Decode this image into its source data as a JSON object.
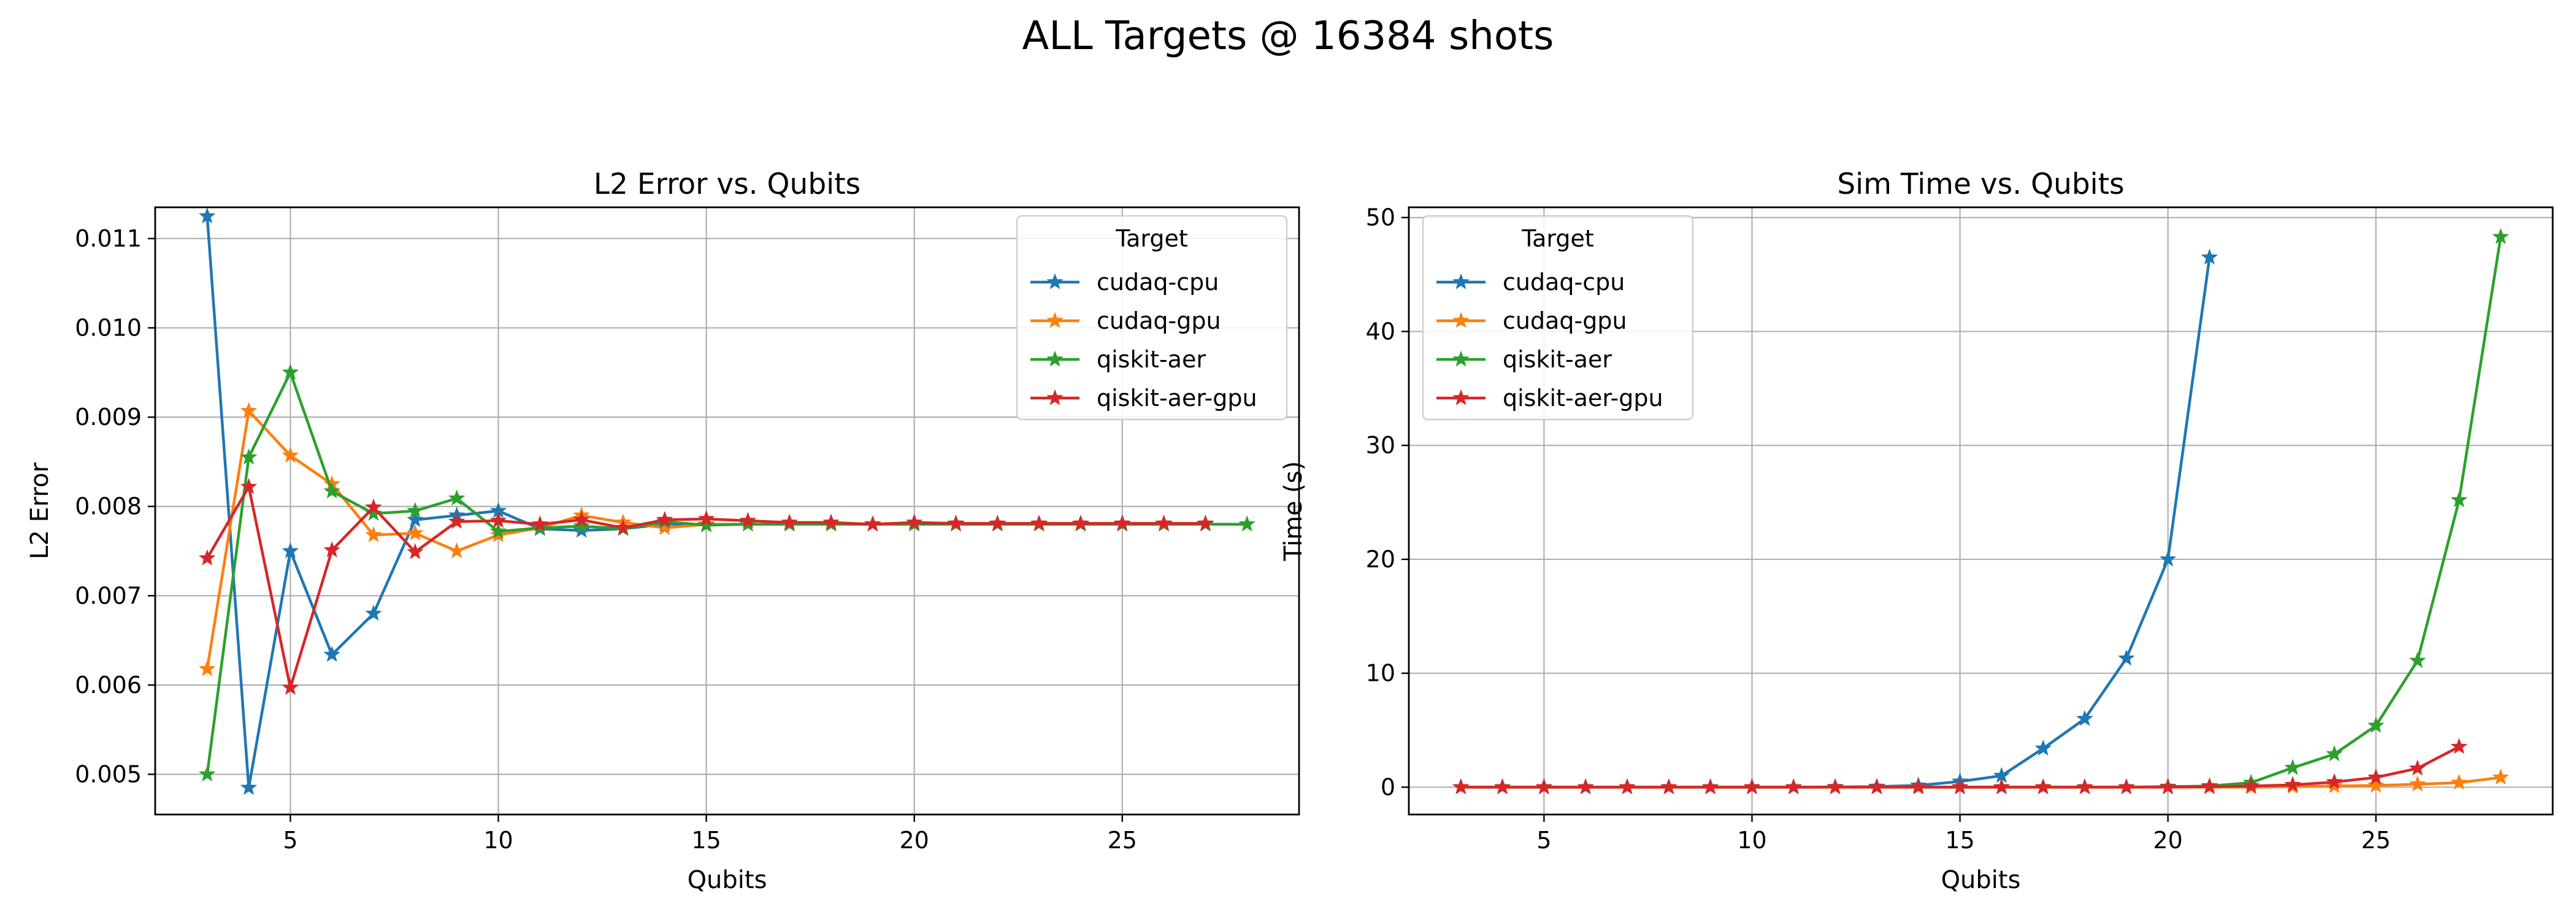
{
  "figure": {
    "title": "ALL Targets @ 16384 shots"
  },
  "chart_data": [
    {
      "type": "line",
      "title": "L2 Error vs. Qubits",
      "xlabel": "Qubits",
      "ylabel": "L2 Error",
      "xlim": [
        1.75,
        29.25
      ],
      "ylim": [
        0.00455,
        0.01135
      ],
      "xticks": [
        5,
        10,
        15,
        20,
        25
      ],
      "yticks": [
        0.005,
        0.006,
        0.007,
        0.008,
        0.009,
        0.01,
        0.011
      ],
      "ytick_labels": [
        "0.005",
        "0.006",
        "0.007",
        "0.008",
        "0.009",
        "0.010",
        "0.011"
      ],
      "grid": true,
      "legend": {
        "title": "Target",
        "placement": "upper right"
      },
      "series": [
        {
          "name": "cudaq-cpu",
          "color": "#1f77b4",
          "x": [
            3,
            4,
            5,
            6,
            7,
            8,
            9,
            10,
            11,
            12,
            13,
            14,
            15,
            16,
            17,
            18,
            19,
            20,
            21,
            22,
            23,
            24,
            25,
            26,
            27
          ],
          "y": [
            0.01125,
            0.00485,
            0.0075,
            0.00634,
            0.0068,
            0.00785,
            0.0079,
            0.00795,
            0.00775,
            0.00773,
            0.00775,
            0.0078,
            0.0078,
            0.0078,
            0.0078,
            0.0078,
            0.0078,
            0.0078,
            0.0078,
            0.0078,
            0.0078,
            0.0078,
            0.0078,
            0.0078,
            0.0078
          ]
        },
        {
          "name": "cudaq-gpu",
          "color": "#ff7f0e",
          "x": [
            3,
            4,
            5,
            6,
            7,
            8,
            9,
            10,
            11,
            12,
            13,
            14,
            15,
            16,
            17,
            18,
            19,
            20,
            21,
            22,
            23,
            24,
            25,
            26,
            27
          ],
          "y": [
            0.00618,
            0.00907,
            0.00857,
            0.00825,
            0.00768,
            0.0077,
            0.0075,
            0.00768,
            0.00776,
            0.0079,
            0.00782,
            0.00776,
            0.0078,
            0.0078,
            0.0078,
            0.0078,
            0.0078,
            0.0078,
            0.0078,
            0.0078,
            0.0078,
            0.0078,
            0.0078,
            0.0078,
            0.0078
          ]
        },
        {
          "name": "qiskit-aer",
          "color": "#2ca02c",
          "x": [
            3,
            4,
            5,
            6,
            7,
            8,
            9,
            10,
            11,
            12,
            13,
            14,
            15,
            16,
            17,
            18,
            19,
            20,
            21,
            22,
            23,
            24,
            25,
            26,
            27,
            28
          ],
          "y": [
            0.005,
            0.00855,
            0.0095,
            0.00817,
            0.00792,
            0.00795,
            0.00809,
            0.00772,
            0.00776,
            0.00778,
            0.00775,
            0.00783,
            0.00779,
            0.0078,
            0.0078,
            0.0078,
            0.0078,
            0.0078,
            0.0078,
            0.0078,
            0.0078,
            0.0078,
            0.0078,
            0.0078,
            0.0078,
            0.0078
          ]
        },
        {
          "name": "qiskit-aer-gpu",
          "color": "#d62728",
          "x": [
            3,
            4,
            5,
            6,
            7,
            8,
            9,
            10,
            11,
            12,
            13,
            14,
            15,
            16,
            17,
            18,
            19,
            20,
            21,
            22,
            23,
            24,
            25,
            26,
            27
          ],
          "y": [
            0.00742,
            0.00822,
            0.00597,
            0.00751,
            0.00799,
            0.00749,
            0.00783,
            0.00784,
            0.0078,
            0.00785,
            0.00776,
            0.00785,
            0.00786,
            0.00784,
            0.00782,
            0.00782,
            0.0078,
            0.00782,
            0.00781,
            0.00781,
            0.00781,
            0.00781,
            0.00781,
            0.00781,
            0.00781
          ]
        }
      ]
    },
    {
      "type": "line",
      "title": "Sim Time vs. Qubits",
      "xlabel": "Qubits",
      "ylabel": "Time (s)",
      "xlim": [
        1.75,
        29.25
      ],
      "ylim": [
        -2.4,
        50.9
      ],
      "xticks": [
        5,
        10,
        15,
        20,
        25
      ],
      "yticks": [
        0,
        10,
        20,
        30,
        40,
        50
      ],
      "ytick_labels": [
        "0",
        "10",
        "20",
        "30",
        "40",
        "50"
      ],
      "grid": true,
      "legend": {
        "title": "Target",
        "placement": "upper left"
      },
      "series": [
        {
          "name": "cudaq-cpu",
          "color": "#1f77b4",
          "x": [
            3,
            4,
            5,
            6,
            7,
            8,
            9,
            10,
            11,
            12,
            13,
            14,
            15,
            16,
            17,
            18,
            19,
            20,
            21
          ],
          "y": [
            0,
            0,
            0,
            0,
            0,
            0,
            0,
            0,
            0,
            0.02,
            0.05,
            0.15,
            0.5,
            1.0,
            3.4,
            6.0,
            11.3,
            20.0,
            46.5
          ]
        },
        {
          "name": "cudaq-gpu",
          "color": "#ff7f0e",
          "x": [
            3,
            4,
            5,
            6,
            7,
            8,
            9,
            10,
            11,
            12,
            13,
            14,
            15,
            16,
            17,
            18,
            19,
            20,
            21,
            22,
            23,
            24,
            25,
            26,
            27,
            28
          ],
          "y": [
            0,
            0,
            0,
            0,
            0,
            0,
            0,
            0,
            0,
            0,
            0,
            0,
            0,
            0,
            0,
            0,
            0,
            0,
            0,
            0,
            0.05,
            0.1,
            0.15,
            0.25,
            0.4,
            0.85
          ]
        },
        {
          "name": "qiskit-aer",
          "color": "#2ca02c",
          "x": [
            3,
            4,
            5,
            6,
            7,
            8,
            9,
            10,
            11,
            12,
            13,
            14,
            15,
            16,
            17,
            18,
            19,
            20,
            21,
            22,
            23,
            24,
            25,
            26,
            27,
            28
          ],
          "y": [
            0,
            0,
            0,
            0,
            0,
            0,
            0,
            0,
            0,
            0,
            0,
            0,
            0,
            0,
            0,
            0,
            0,
            0.05,
            0.1,
            0.4,
            1.7,
            2.9,
            5.4,
            11.1,
            25.2,
            48.3
          ]
        },
        {
          "name": "qiskit-aer-gpu",
          "color": "#d62728",
          "x": [
            3,
            4,
            5,
            6,
            7,
            8,
            9,
            10,
            11,
            12,
            13,
            14,
            15,
            16,
            17,
            18,
            19,
            20,
            21,
            22,
            23,
            24,
            25,
            26,
            27
          ],
          "y": [
            0,
            0,
            0,
            0,
            0,
            0,
            0,
            0,
            0,
            0,
            0,
            0,
            0,
            0,
            0,
            0,
            0,
            0,
            0.05,
            0.1,
            0.2,
            0.45,
            0.85,
            1.65,
            3.55
          ]
        }
      ]
    }
  ]
}
